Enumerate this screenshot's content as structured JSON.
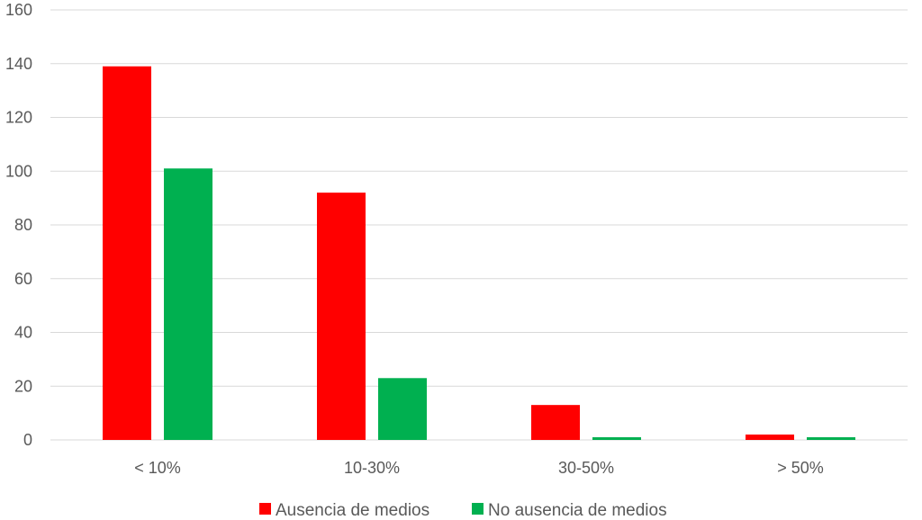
{
  "chart_data": {
    "type": "bar",
    "categories": [
      "< 10%",
      "10-30%",
      "30-50%",
      "> 50%"
    ],
    "series": [
      {
        "name": "Ausencia de medios",
        "color": "#ff0000",
        "values": [
          139,
          92,
          13,
          2
        ]
      },
      {
        "name": "No ausencia de medios",
        "color": "#00b050",
        "values": [
          101,
          23,
          1,
          1
        ]
      }
    ],
    "ylim": [
      0,
      160
    ],
    "yticks": [
      0,
      20,
      40,
      60,
      80,
      100,
      120,
      140,
      160
    ],
    "grid": true,
    "legend_position": "bottom",
    "title": "",
    "xlabel": "",
    "ylabel": ""
  }
}
